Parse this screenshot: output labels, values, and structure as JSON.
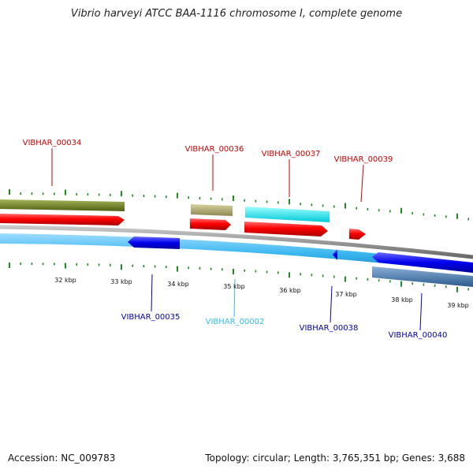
{
  "title": "Vibrio harveyi ATCC BAA-1116 chromosome I, complete genome",
  "footer": {
    "accession": "Accession: NC_009783",
    "stats": "Topology: circular; Length: 3,765,351 bp; Genes: 3,688"
  },
  "colors": {
    "label_forward": "#cc0000",
    "label_reverse": "#0000aa",
    "label_rna": "#33bbee",
    "tick": "#228822",
    "backbone": "#888888"
  },
  "scale_labels": [
    "32 kbp",
    "33 kbp",
    "34 kbp",
    "35 kbp",
    "36 kbp",
    "37 kbp",
    "38 kbp",
    "39 kbp"
  ],
  "genes_top": [
    "VIBHAR_00034",
    "VIBHAR_00036",
    "VIBHAR_00037",
    "VIBHAR_00039"
  ],
  "genes_bottom": [
    "VIBHAR_00035",
    "VIBHAR_00002",
    "VIBHAR_00038",
    "VIBHAR_00040"
  ]
}
